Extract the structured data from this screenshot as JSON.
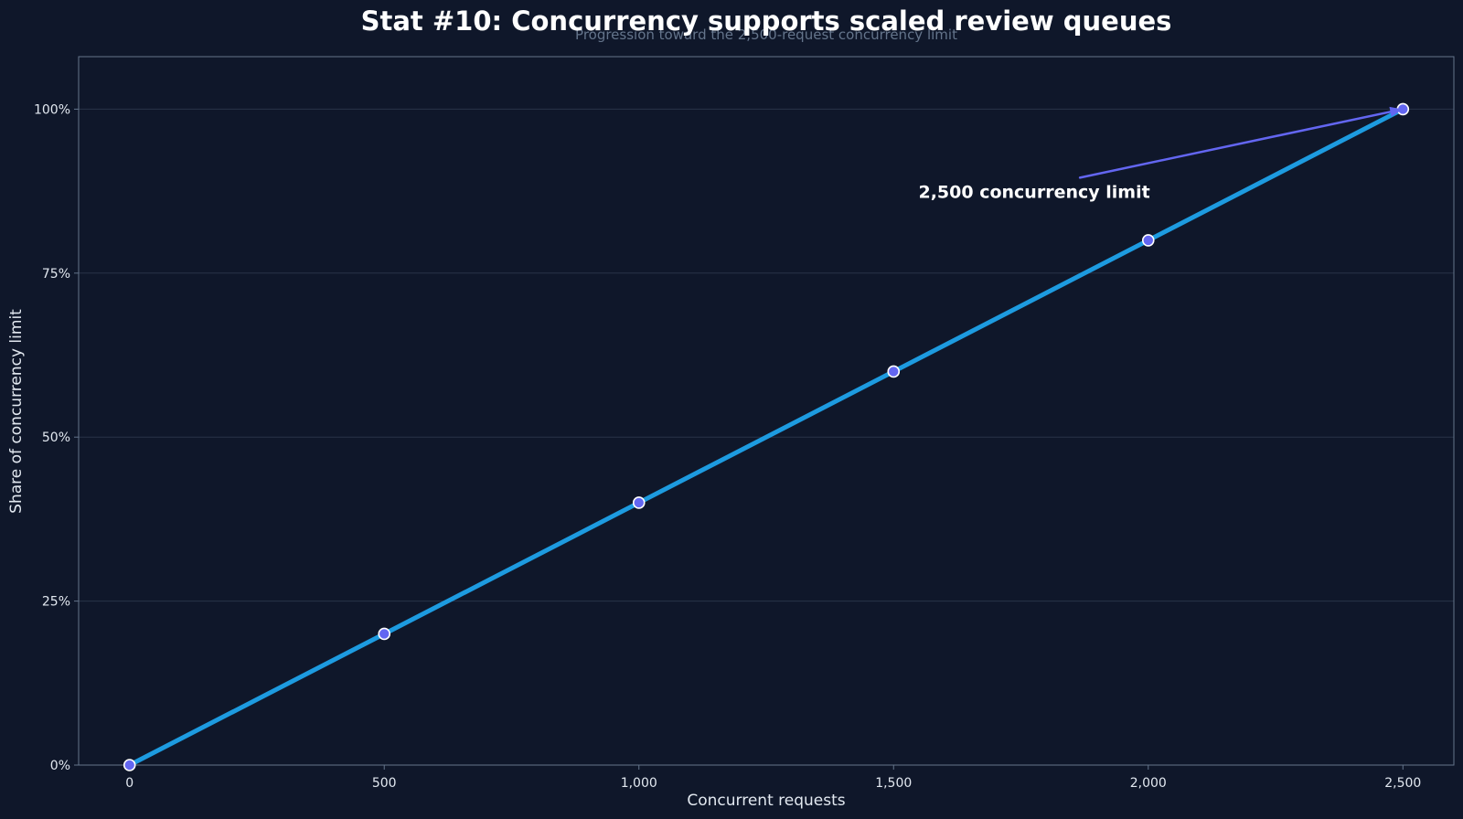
{
  "colors": {
    "background": "#0f172a",
    "line": "#1d9be0",
    "marker_fill": "#6366f1",
    "marker_edge": "#ffffff",
    "annotation_arrow": "#6366f1",
    "grid": "#334155",
    "frame": "#64748b"
  },
  "chart_data": {
    "type": "line",
    "title": "Stat #10: Concurrency supports scaled review queues",
    "subtitle": "Progression toward the 2,500-request concurrency limit",
    "xlabel": "Concurrent requests",
    "ylabel": "Share of concurrency limit",
    "xlim": [
      -100,
      2600
    ],
    "ylim": [
      0,
      1.08
    ],
    "x_ticks": [
      0,
      500,
      1000,
      1500,
      2000,
      2500
    ],
    "x_tick_labels": [
      "0",
      "500",
      "1,000",
      "1,500",
      "2,000",
      "2,500"
    ],
    "y_ticks": [
      0,
      0.25,
      0.5,
      0.75,
      1.0
    ],
    "y_tick_labels": [
      "0%",
      "25%",
      "50%",
      "75%",
      "100%"
    ],
    "grid": "horizontal",
    "series": [
      {
        "x": [
          0,
          500,
          1000,
          1500,
          2000,
          2500
        ],
        "y": [
          0,
          0.2,
          0.4,
          0.6,
          0.8,
          1.0
        ]
      }
    ],
    "annotation": {
      "text": "2,500 concurrency limit",
      "point": [
        2500,
        1.0
      ],
      "text_at": [
        1830,
        0.89
      ]
    }
  }
}
